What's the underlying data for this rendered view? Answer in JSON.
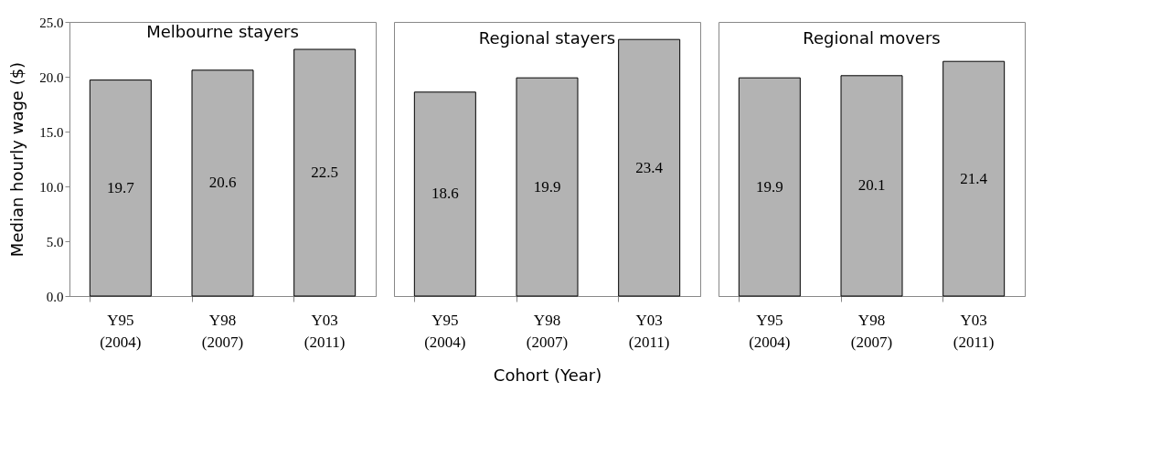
{
  "chart_data": [
    {
      "type": "bar",
      "title": "Melbourne stayers",
      "ylabel": "Median hourly wage ($)",
      "categories": [
        "Y95\n(2004)",
        "Y98\n(2007)",
        "Y03\n(2011)"
      ],
      "values": [
        19.7,
        20.6,
        22.5
      ],
      "color": "#b3b3b3",
      "ylim": [
        0,
        25
      ],
      "yticks": [
        {
          "value": 0,
          "label": "0.0"
        },
        {
          "value": 5,
          "label": "5.0"
        },
        {
          "value": 10,
          "label": "10.0"
        },
        {
          "value": 15,
          "label": "15.0"
        },
        {
          "value": 20,
          "label": "20.0"
        },
        {
          "value": 25,
          "label": "25.0"
        }
      ],
      "data_labels": true,
      "grid": false
    },
    {
      "type": "bar",
      "title": "Regional stayers",
      "xlabel": "Cohort (Year)",
      "categories": [
        "Y95\n(2004)",
        "Y98\n(2007)",
        "Y03\n(2011)"
      ],
      "values": [
        18.6,
        19.9,
        23.4
      ],
      "color": "#b3b3b3",
      "ylim": [
        0,
        25
      ],
      "data_labels": true,
      "grid": false,
      "tick_labels": "x"
    },
    {
      "type": "bar",
      "title": "Regional movers",
      "categories": [
        "Y95\n(2004)",
        "Y98\n(2007)",
        "Y03\n(2011)"
      ],
      "values": [
        19.9,
        20.1,
        21.4
      ],
      "color": "#b3b3b3",
      "ylim": [
        0,
        25
      ],
      "data_labels": true,
      "grid": false,
      "tick_labels": "x"
    }
  ]
}
